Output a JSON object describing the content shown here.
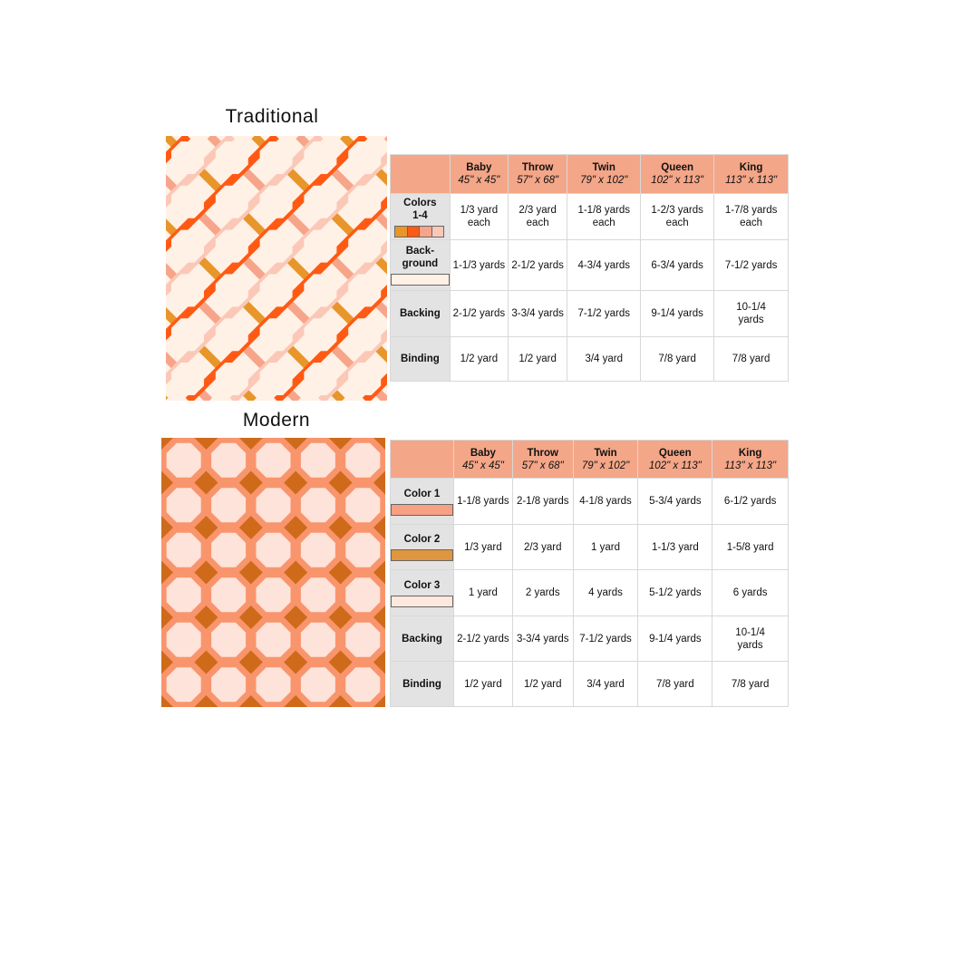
{
  "traditional": {
    "title": "Traditional",
    "colors": {
      "strip1": "#e8952a",
      "strip2": "#ff5a14",
      "strip3": "#f7a58a",
      "strip4": "#fbc8b8",
      "background": "#fff1e6"
    },
    "headers": [
      {
        "size": "Baby",
        "dims": "45\" x 45\""
      },
      {
        "size": "Throw",
        "dims": "57\" x 68\""
      },
      {
        "size": "Twin",
        "dims": "79\" x 102\""
      },
      {
        "size": "Queen",
        "dims": "102\" x 113\""
      },
      {
        "size": "King",
        "dims": "113\" x 113\""
      }
    ],
    "rows": [
      {
        "label": "Colors 1-4",
        "values": [
          "1/3 yard each",
          "2/3 yard each",
          "1-1/8 yards each",
          "1-2/3 yards each",
          "1-7/8 yards each"
        ]
      },
      {
        "label": "Back- ground",
        "values": [
          "1-1/3 yards",
          "2-1/2 yards",
          "4-3/4 yards",
          "6-3/4 yards",
          "7-1/2 yards"
        ]
      },
      {
        "label": "Backing",
        "values": [
          "2-1/2 yards",
          "3-3/4 yards",
          "7-1/2 yards",
          "9-1/4 yards",
          "10-1/4 yards"
        ]
      },
      {
        "label": "Binding",
        "values": [
          "1/2 yard",
          "1/2 yard",
          "3/4 yard",
          "7/8 yard",
          "7/8 yard"
        ]
      }
    ]
  },
  "modern": {
    "title": "Modern",
    "colors": {
      "color1": "#f7a084",
      "color2": "#e0963e",
      "color3": "#fde8e0",
      "diamond": "#cf6a1a",
      "octagon": "#fde3da",
      "field": "#f9956d"
    },
    "headers": [
      {
        "size": "Baby",
        "dims": "45\" x 45\""
      },
      {
        "size": "Throw",
        "dims": "57\" x 68\""
      },
      {
        "size": "Twin",
        "dims": "79\" x 102\""
      },
      {
        "size": "Queen",
        "dims": "102\" x 113\""
      },
      {
        "size": "King",
        "dims": "113\" x 113\""
      }
    ],
    "rows": [
      {
        "label": "Color 1",
        "values": [
          "1-1/8 yards",
          "2-1/8 yards",
          "4-1/8 yards",
          "5-3/4 yards",
          "6-1/2 yards"
        ]
      },
      {
        "label": "Color 2",
        "values": [
          "1/3 yard",
          "2/3 yard",
          "1 yard",
          "1-1/3 yard",
          "1-5/8 yard"
        ]
      },
      {
        "label": "Color 3",
        "values": [
          "1 yard",
          "2 yards",
          "4 yards",
          "5-1/2 yards",
          "6 yards"
        ]
      },
      {
        "label": "Backing",
        "values": [
          "2-1/2 yards",
          "3-3/4 yards",
          "7-1/2 yards",
          "9-1/4 yards",
          "10-1/4 yards"
        ]
      },
      {
        "label": "Binding",
        "values": [
          "1/2 yard",
          "1/2 yard",
          "3/4 yard",
          "7/8 yard",
          "7/8 yard"
        ]
      }
    ]
  }
}
